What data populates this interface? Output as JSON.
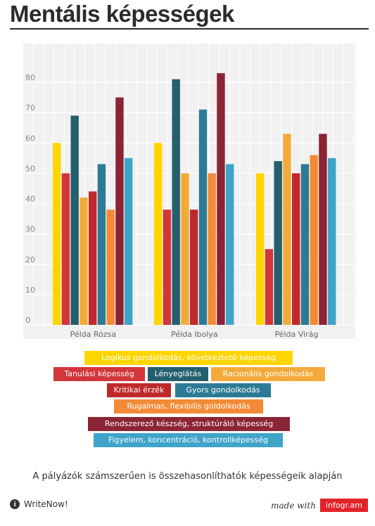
{
  "title": "Mentális képességek",
  "subtitle": "A pályázók számszerűen is összehasonlíthatók képességeik alapján",
  "footer": {
    "brand": "WriteNow!",
    "made_with": "made with",
    "logo": "infogr.am",
    "info_icon": "info-icon"
  },
  "chart_data": {
    "type": "bar",
    "categories": [
      "Példa Rózsa",
      "Példa Ibolya",
      "Példa Virág"
    ],
    "series": [
      {
        "name": "Logikus gondolkodás, következtető képesség",
        "color": "#ffd500",
        "values": [
          60,
          60,
          50
        ]
      },
      {
        "name": "Tanulási képesség",
        "color": "#d2363a",
        "values": [
          50,
          38,
          25
        ]
      },
      {
        "name": "Lényeglátás",
        "color": "#245f6e",
        "values": [
          69,
          81,
          54
        ]
      },
      {
        "name": "Racionális gondolkodás",
        "color": "#f2ab3b",
        "values": [
          42,
          50,
          63
        ]
      },
      {
        "name": "Kritikai érzék",
        "color": "#c0292c",
        "values": [
          44,
          38,
          50
        ]
      },
      {
        "name": "Gyors gondolkodás",
        "color": "#2d7a95",
        "values": [
          53,
          71,
          53
        ]
      },
      {
        "name": "Rugalmas, flexibilis goldolkodás",
        "color": "#f38b36",
        "values": [
          38,
          50,
          56
        ]
      },
      {
        "name": "Rendszerező készség, struktúráló képesség",
        "color": "#8b2434",
        "values": [
          75,
          83,
          63
        ]
      },
      {
        "name": "Figyelem, koncentráció, kontrollképesség",
        "color": "#3fa4c8",
        "values": [
          55,
          53,
          55
        ]
      }
    ],
    "y_ticks": [
      "0",
      "10",
      "20",
      "30",
      "40",
      "50",
      "60",
      "70",
      "80"
    ],
    "ylim": [
      0,
      90
    ],
    "grid": true,
    "legend_position": "bottom"
  }
}
